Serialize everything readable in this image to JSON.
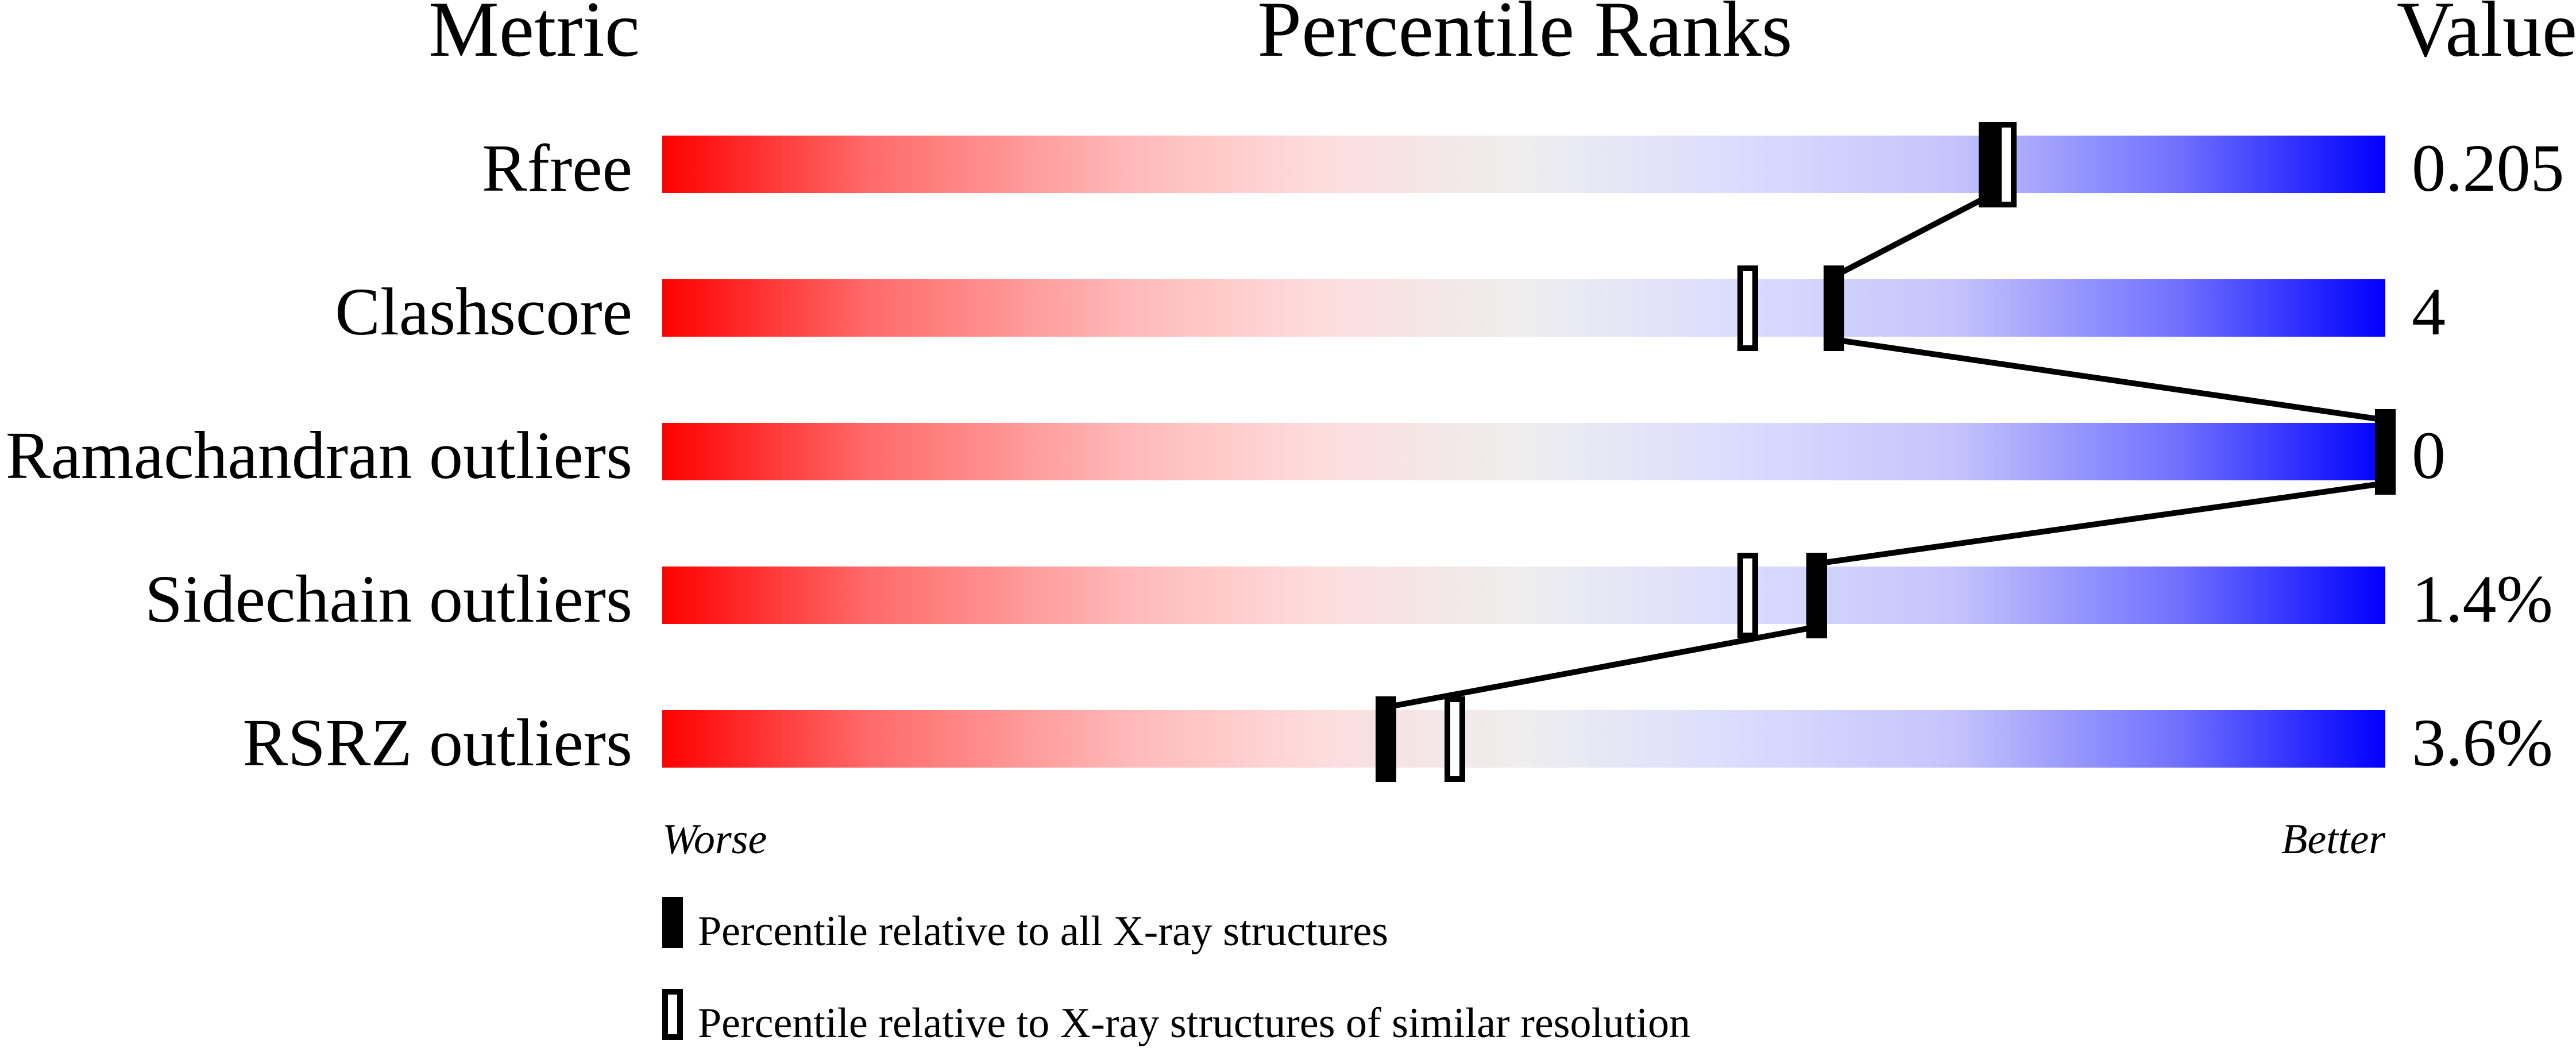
{
  "chart_data": {
    "type": "bar",
    "headers": {
      "metric": "Metric",
      "ranks": "Percentile Ranks",
      "value": "Value"
    },
    "metrics": [
      {
        "name": "Rfree",
        "value": "0.205",
        "percentile_all": 77,
        "percentile_similar": 78
      },
      {
        "name": "Clashscore",
        "value": "4",
        "percentile_all": 68,
        "percentile_similar": 63
      },
      {
        "name": "Ramachandran outliers",
        "value": "0",
        "percentile_all": 100,
        "percentile_similar": 100
      },
      {
        "name": "Sidechain outliers",
        "value": "1.4%",
        "percentile_all": 67,
        "percentile_similar": 63
      },
      {
        "name": "RSRZ outliers",
        "value": "3.6%",
        "percentile_all": 42,
        "percentile_similar": 46
      }
    ],
    "xlim": [
      0,
      100
    ],
    "axis": {
      "left": "Worse",
      "right": "Better"
    },
    "legend": {
      "all": "Percentile relative to all X-ray structures",
      "similar": "Percentile relative to X-ray structures of similar resolution"
    },
    "colors": {
      "worse": "#ff0000",
      "middle": "#eeeeee",
      "better": "#0000ff",
      "marker": "#000000"
    }
  }
}
